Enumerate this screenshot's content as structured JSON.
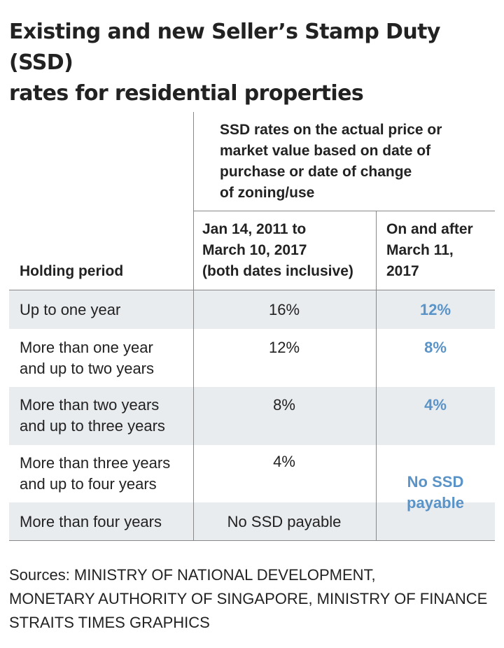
{
  "title_lines": [
    "Existing and new Seller’s Stamp Duty (SSD)",
    "rates for residential properties"
  ],
  "header": {
    "group_lines": [
      "SSD rates on the actual price or",
      "market value based on date of",
      "purchase or date of change",
      "of zoning/use"
    ],
    "holding_label": "Holding period",
    "col1_lines": [
      "Jan 14, 2011 to",
      "March 10, 2017",
      "(both dates inclusive)"
    ],
    "col2_lines": [
      "On and after",
      "March 11,",
      "2017"
    ]
  },
  "rows": [
    {
      "period_lines": [
        "Up to one year"
      ],
      "old": "16%",
      "new": "12%"
    },
    {
      "period_lines": [
        "More than one year",
        "and up to two years"
      ],
      "old": "12%",
      "new": "8%"
    },
    {
      "period_lines": [
        "More than two years",
        "and up to three years"
      ],
      "old": "8%",
      "new": "4%"
    },
    {
      "period_lines": [
        "More than three years",
        "and up to four years"
      ],
      "old": "4%"
    },
    {
      "period_lines": [
        "More than four years"
      ],
      "old": "No SSD payable"
    }
  ],
  "merged_new_lines": [
    "No SSD",
    "payable"
  ],
  "sources_lines": [
    "Sources: MINISTRY OF NATIONAL DEVELOPMENT,",
    "MONETARY AUTHORITY OF SINGAPORE, MINISTRY OF FINANCE",
    "STRAITS TIMES GRAPHICS"
  ],
  "colors": {
    "band": "#e8ecef",
    "accent": "#5a93c7",
    "text": "#222222"
  }
}
